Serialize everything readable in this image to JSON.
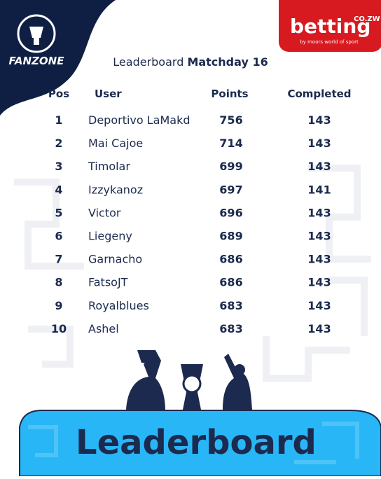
{
  "logo": {
    "name": "FANZONE"
  },
  "sponsor": {
    "name": "betting",
    "suffix": "CO.ZW",
    "tagline": "by moors world of sport"
  },
  "title": {
    "prefix": "Leaderboard",
    "matchday": "Matchday 16"
  },
  "table": {
    "headers": [
      "Pos",
      "User",
      "Points",
      "Completed"
    ],
    "rows": [
      [
        "1",
        "Deportivo LaMakd",
        "756",
        "143"
      ],
      [
        "2",
        "Mai Cajoe",
        "714",
        "143"
      ],
      [
        "3",
        "Timolar",
        "699",
        "143"
      ],
      [
        "4",
        "Izzykanoz",
        "697",
        "141"
      ],
      [
        "5",
        "Victor",
        "696",
        "143"
      ],
      [
        "6",
        "Liegeny",
        "689",
        "143"
      ],
      [
        "7",
        "Garnacho",
        "686",
        "143"
      ],
      [
        "8",
        "FatsoJT",
        "686",
        "143"
      ],
      [
        "9",
        "Royalblues",
        "683",
        "143"
      ],
      [
        "10",
        "Ashel",
        "683",
        "143"
      ]
    ]
  },
  "footer": {
    "title": "Leaderboard"
  }
}
